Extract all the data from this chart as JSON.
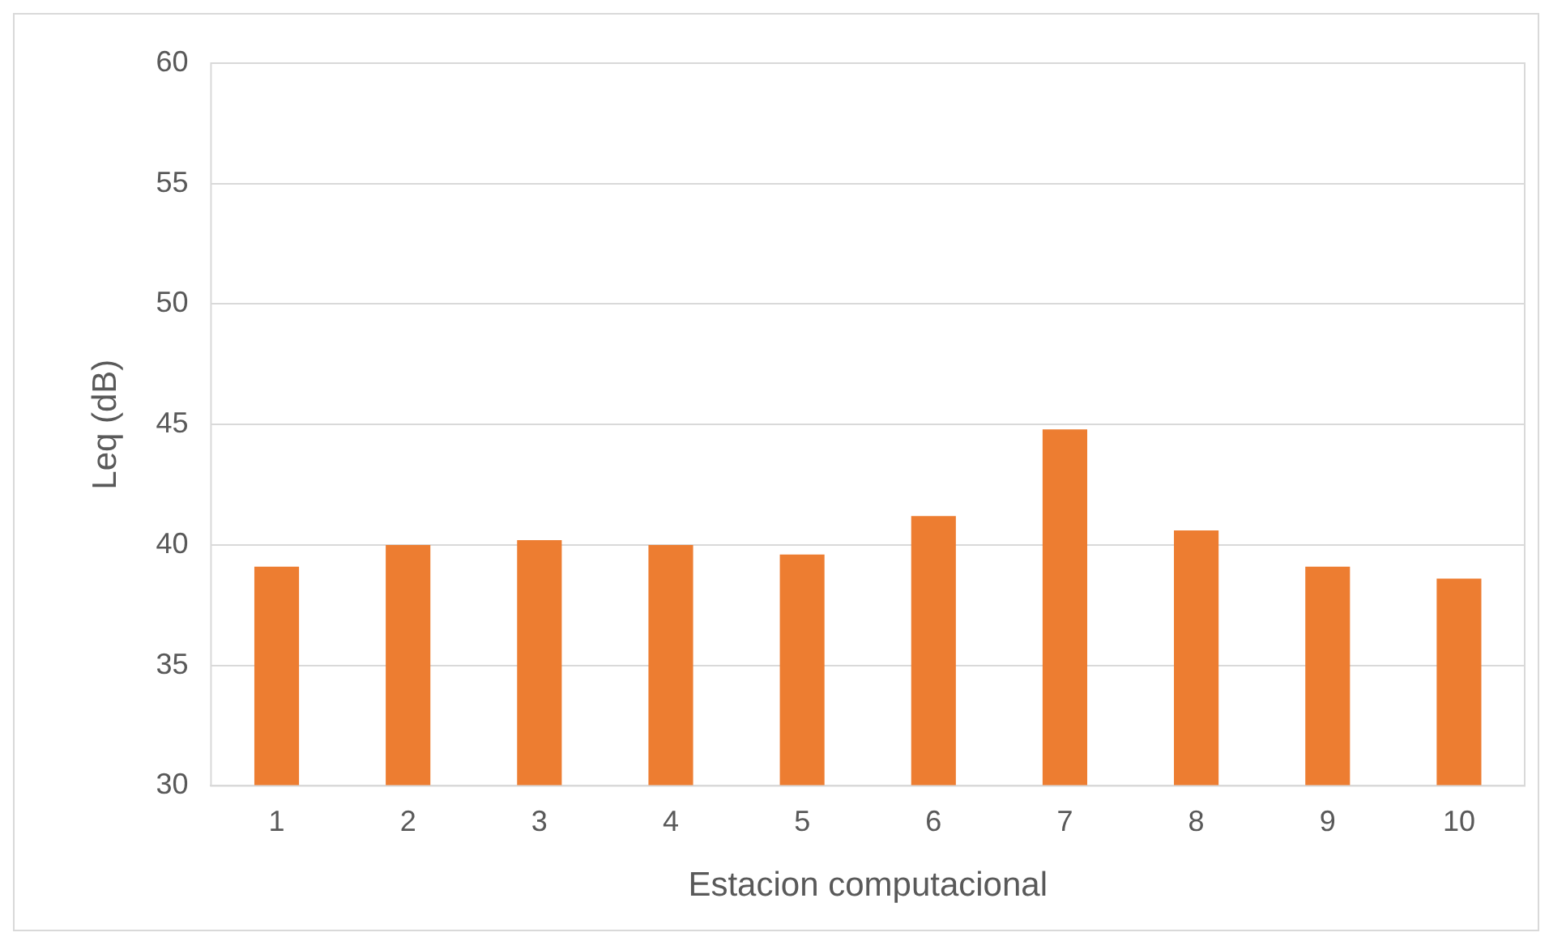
{
  "chart_data": {
    "type": "bar",
    "xlabel": "Estacion computacional",
    "ylabel": "Leq (dB)",
    "categories": [
      "1",
      "2",
      "3",
      "4",
      "5",
      "6",
      "7",
      "8",
      "9",
      "10"
    ],
    "series": [
      {
        "color": "#ed7d31",
        "values": [
          39.1,
          40.0,
          40.2,
          40.0,
          39.6,
          41.2,
          44.8,
          40.6,
          39.1,
          38.6
        ]
      }
    ],
    "ylim": [
      30,
      60
    ],
    "yticks": [
      30,
      35,
      40,
      45,
      50,
      55,
      60
    ],
    "grid": "y"
  }
}
